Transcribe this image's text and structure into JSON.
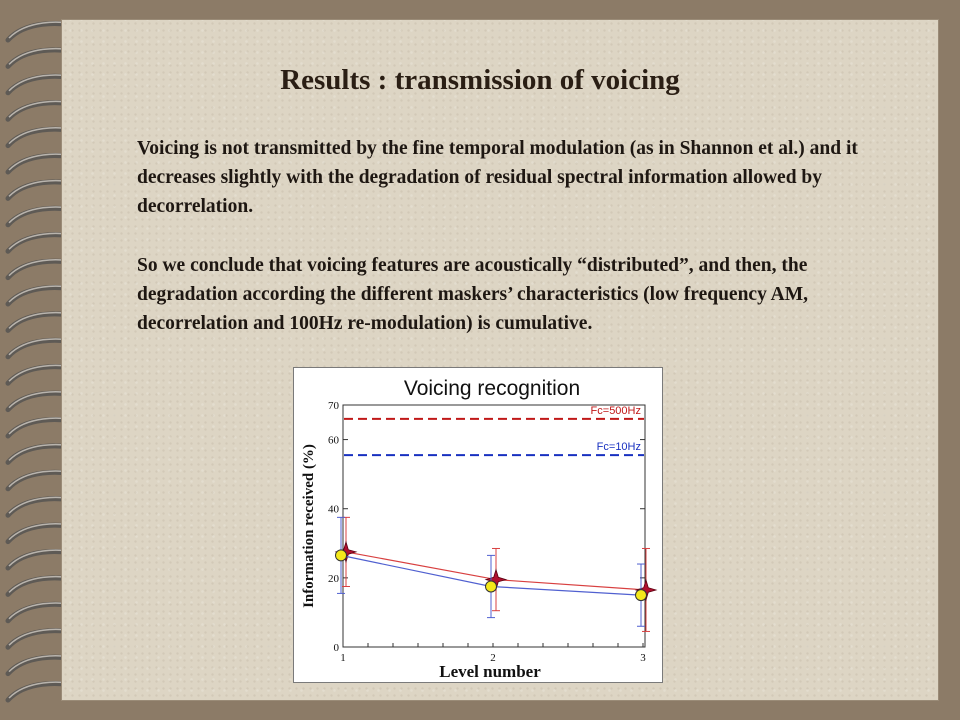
{
  "slide": {
    "title": "Results : transmission of voicing",
    "paragraph1": "Voicing is not transmitted by the fine temporal modulation (as in Shannon et al.) and it decreases slightly with the degradation of residual spectral information allowed by decorrelation.",
    "paragraph2": "So we conclude that voicing features are acoustically “distributed”, and then, the degradation according the different maskers’ characteristics (low frequency AM, decorrelation and 100Hz re-modulation) is cumulative."
  },
  "chart_data": {
    "type": "line",
    "title": "Voicing recognition",
    "xlabel": "Level number",
    "ylabel": "Information received (%)",
    "x": [
      1,
      2,
      3
    ],
    "xlim": [
      1,
      3
    ],
    "ylim": [
      0,
      70
    ],
    "yticks": [
      0,
      20,
      40,
      60,
      70
    ],
    "xtick_labels": [
      "1",
      "2",
      "3"
    ],
    "series": [
      {
        "values": [
          27.5,
          19.5,
          16.5
        ],
        "color": "#d84040",
        "marker": "star",
        "error": [
          10,
          9,
          12
        ]
      },
      {
        "values": [
          26.5,
          17.5,
          15.0
        ],
        "color": "#5060d0",
        "marker": "circle",
        "error": [
          11,
          9,
          9
        ]
      }
    ],
    "reference_lines": [
      {
        "name": "Fc=500Hz",
        "value": 66,
        "color": "#c01818"
      },
      {
        "name": "Fc=10Hz",
        "value": 55.5,
        "color": "#1830c0"
      }
    ],
    "grid": false,
    "background": "#ffffff"
  }
}
